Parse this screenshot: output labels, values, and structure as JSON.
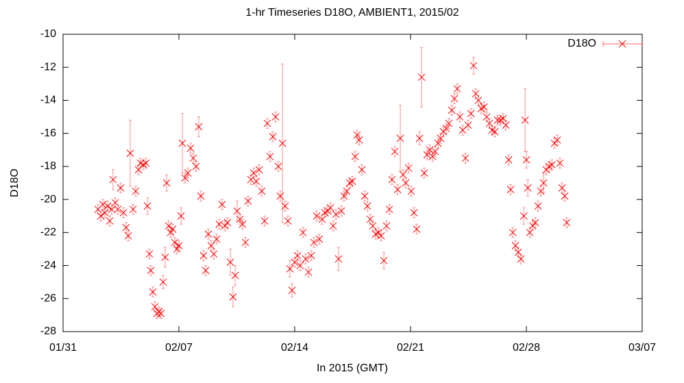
{
  "chart_data": {
    "type": "scatter",
    "title": "1-hr Timeseries D18O, AMBIENT1, 2015/02",
    "x_label": "In 2015 (GMT)",
    "y_label": "D18O",
    "xlim": [
      0,
      35
    ],
    "xticks": [
      {
        "value": 0,
        "label": "01/31"
      },
      {
        "value": 7,
        "label": "02/07"
      },
      {
        "value": 14,
        "label": "02/14"
      },
      {
        "value": 21,
        "label": "02/21"
      },
      {
        "value": 28,
        "label": "02/28"
      },
      {
        "value": 35,
        "label": "03/07"
      }
    ],
    "ylim": [
      -28,
      -10
    ],
    "yticks": [
      -28,
      -26,
      -24,
      -22,
      -20,
      -18,
      -16,
      -14,
      -12,
      -10
    ],
    "grid": false,
    "legend": "top-right",
    "series": [
      {
        "name": "D18O",
        "color": "#ff0000",
        "x": [
          2.11,
          2.28,
          2.4,
          2.53,
          2.69,
          2.82,
          2.94,
          3.02,
          3.15,
          3.31,
          3.48,
          3.65,
          3.81,
          3.94,
          4.06,
          4.23,
          4.39,
          4.56,
          4.68,
          4.85,
          5.01,
          5.1,
          5.22,
          5.3,
          5.43,
          5.55,
          5.68,
          5.8,
          5.92,
          6.05,
          6.17,
          6.26,
          6.38,
          6.5,
          6.63,
          6.75,
          6.88,
          7.0,
          7.13,
          7.21,
          7.37,
          7.54,
          7.71,
          7.87,
          8.04,
          8.2,
          8.33,
          8.49,
          8.62,
          8.78,
          8.95,
          9.11,
          9.28,
          9.44,
          9.61,
          9.78,
          9.94,
          10.11,
          10.27,
          10.4,
          10.52,
          10.69,
          10.85,
          11.02,
          11.18,
          11.35,
          11.52,
          11.68,
          11.85,
          12.01,
          12.18,
          12.34,
          12.51,
          12.68,
          12.84,
          13.01,
          13.13,
          13.26,
          13.42,
          13.59,
          13.71,
          13.84,
          14.0,
          14.17,
          14.33,
          14.5,
          14.66,
          14.83,
          15.0,
          15.16,
          15.33,
          15.49,
          15.66,
          15.82,
          15.99,
          16.16,
          16.32,
          16.49,
          16.65,
          16.82,
          16.98,
          17.15,
          17.32,
          17.48,
          17.65,
          17.77,
          17.9,
          18.06,
          18.23,
          18.39,
          18.56,
          18.72,
          18.89,
          19.06,
          19.22,
          19.39,
          19.55,
          19.72,
          19.88,
          20.05,
          20.22,
          20.38,
          20.55,
          20.71,
          20.88,
          21.04,
          21.21,
          21.37,
          21.54,
          21.67,
          21.83,
          22.0,
          22.16,
          22.33,
          22.49,
          22.66,
          22.82,
          22.99,
          23.16,
          23.32,
          23.49,
          23.65,
          23.82,
          23.98,
          24.15,
          24.32,
          24.48,
          24.65,
          24.81,
          24.94,
          25.1,
          25.27,
          25.44,
          25.6,
          25.77,
          25.93,
          26.1,
          26.26,
          26.43,
          26.6,
          26.76,
          26.93,
          27.05,
          27.18,
          27.34,
          27.51,
          27.67,
          27.84,
          27.92,
          28.0,
          28.09,
          28.21,
          28.38,
          28.54,
          28.71,
          28.87,
          29.04,
          29.2,
          29.37,
          29.54,
          29.7,
          29.87,
          30.03,
          30.16,
          30.32,
          30.44
        ],
        "values": [
          -20.6,
          -21.0,
          -20.3,
          -20.8,
          -20.4,
          -21.3,
          -20.6,
          -18.8,
          -20.2,
          -20.6,
          -19.3,
          -20.8,
          -21.7,
          -22.2,
          -17.2,
          -20.6,
          -19.5,
          -18.2,
          -17.8,
          -17.9,
          -17.8,
          -20.4,
          -23.3,
          -24.3,
          -25.6,
          -26.5,
          -26.9,
          -26.8,
          -26.9,
          -25.0,
          -23.5,
          -19.0,
          -21.6,
          -22.0,
          -21.8,
          -22.6,
          -23.0,
          -22.8,
          -21.0,
          -16.6,
          -18.7,
          -18.4,
          -16.9,
          -17.5,
          -18.0,
          -15.6,
          -19.8,
          -23.4,
          -24.3,
          -22.1,
          -22.8,
          -23.3,
          -22.4,
          -21.5,
          -20.3,
          -21.6,
          -21.4,
          -23.8,
          -25.9,
          -24.6,
          -20.7,
          -21.2,
          -21.5,
          -22.6,
          -20.1,
          -18.8,
          -18.4,
          -18.9,
          -18.2,
          -19.5,
          -21.3,
          -15.4,
          -17.4,
          -16.2,
          -15.0,
          -18.0,
          -19.8,
          -16.6,
          -20.4,
          -21.3,
          -24.2,
          -25.5,
          -23.8,
          -23.4,
          -24.0,
          -22.0,
          -23.6,
          -24.4,
          -23.4,
          -22.6,
          -21.0,
          -22.4,
          -21.2,
          -20.8,
          -20.7,
          -20.5,
          -21.6,
          -20.9,
          -23.6,
          -20.7,
          -19.8,
          -19.5,
          -19.0,
          -18.9,
          -17.4,
          -16.1,
          -16.4,
          -18.2,
          -19.8,
          -20.4,
          -21.2,
          -21.6,
          -22.1,
          -22.0,
          -22.2,
          -23.7,
          -21.6,
          -20.6,
          -18.8,
          -17.1,
          -19.4,
          -16.3,
          -18.5,
          -19.0,
          -18.1,
          -19.5,
          -20.8,
          -21.8,
          -16.3,
          -12.6,
          -18.4,
          -17.3,
          -17.0,
          -17.4,
          -17.1,
          -16.6,
          -16.3,
          -15.9,
          -15.7,
          -15.4,
          -14.6,
          -13.9,
          -13.3,
          -15.0,
          -15.8,
          -17.5,
          -15.5,
          -14.8,
          -11.9,
          -13.6,
          -14.0,
          -14.5,
          -14.4,
          -15.0,
          -15.4,
          -15.8,
          -15.9,
          -15.2,
          -15.2,
          -15.1,
          -15.5,
          -17.6,
          -19.4,
          -22.0,
          -22.8,
          -23.2,
          -23.6,
          -21.0,
          -15.2,
          -17.6,
          -19.3,
          -22.0,
          -21.6,
          -21.4,
          -20.4,
          -19.5,
          -19.0,
          -18.2,
          -18.0,
          -17.9,
          -16.6,
          -16.4,
          -17.8,
          -19.3,
          -19.8,
          -21.4
        ],
        "errors": [
          0.3,
          0.3,
          0.3,
          0.3,
          0.3,
          0.3,
          0.3,
          0.6,
          0.3,
          0.3,
          0.3,
          0.3,
          0.3,
          0.3,
          2.0,
          0.3,
          0.3,
          0.3,
          0.3,
          0.3,
          0.3,
          0.5,
          0.3,
          0.3,
          0.3,
          0.3,
          0.3,
          0.3,
          0.3,
          0.4,
          0.6,
          0.5,
          0.3,
          0.3,
          0.3,
          0.3,
          0.3,
          0.3,
          0.5,
          1.8,
          0.3,
          0.3,
          0.3,
          0.3,
          0.3,
          0.6,
          0.3,
          0.3,
          0.3,
          0.3,
          0.3,
          0.3,
          0.3,
          0.3,
          0.3,
          0.3,
          0.3,
          0.8,
          0.6,
          0.6,
          0.6,
          0.3,
          0.3,
          0.3,
          0.3,
          0.3,
          0.3,
          0.3,
          0.3,
          0.3,
          0.3,
          0.3,
          0.3,
          0.3,
          0.3,
          0.3,
          0.3,
          4.8,
          0.3,
          0.3,
          0.5,
          0.4,
          0.3,
          0.3,
          0.3,
          0.3,
          0.3,
          0.3,
          0.3,
          0.3,
          0.3,
          0.3,
          0.3,
          0.3,
          0.3,
          0.3,
          0.3,
          0.3,
          0.7,
          0.3,
          0.3,
          0.3,
          0.3,
          0.3,
          0.3,
          0.3,
          0.3,
          0.3,
          0.3,
          0.3,
          0.3,
          0.3,
          0.3,
          0.3,
          0.3,
          0.5,
          0.3,
          0.3,
          0.3,
          0.3,
          0.3,
          2.0,
          0.3,
          0.3,
          0.3,
          0.3,
          0.3,
          0.3,
          0.4,
          1.8,
          0.3,
          0.3,
          0.3,
          0.3,
          0.3,
          0.3,
          0.3,
          0.3,
          0.3,
          0.3,
          0.3,
          0.3,
          0.3,
          0.3,
          0.3,
          0.3,
          0.3,
          0.3,
          0.5,
          0.3,
          0.3,
          0.3,
          0.3,
          0.3,
          0.3,
          0.3,
          0.3,
          0.3,
          0.3,
          0.3,
          0.3,
          0.3,
          0.3,
          0.3,
          0.3,
          0.3,
          0.3,
          0.5,
          1.9,
          0.5,
          0.5,
          0.3,
          0.3,
          0.3,
          0.3,
          0.3,
          0.6,
          0.3,
          0.3,
          0.3,
          0.3,
          0.3,
          0.3,
          0.3,
          0.3,
          0.3
        ]
      }
    ]
  }
}
